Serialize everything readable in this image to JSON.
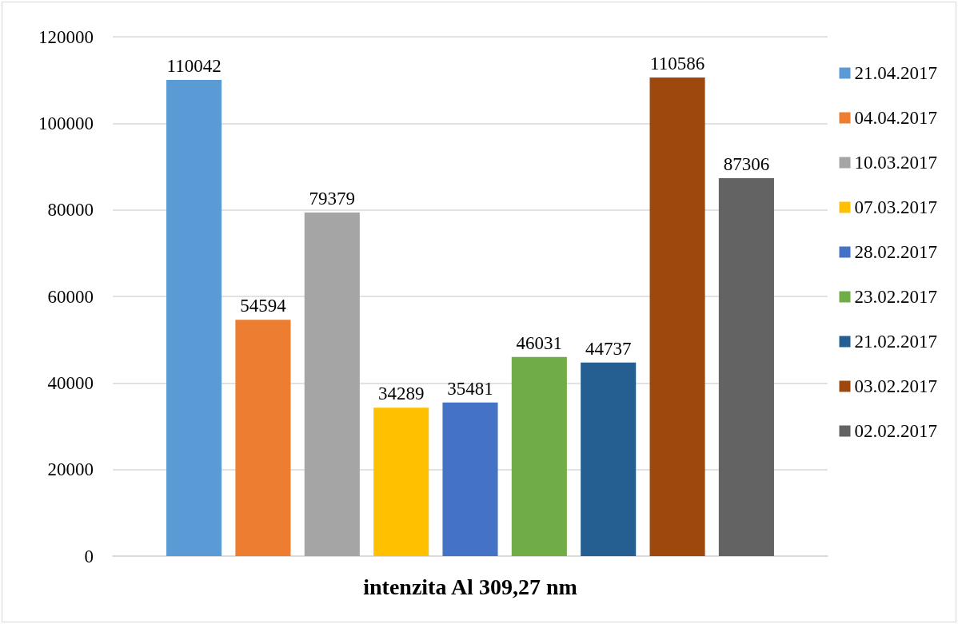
{
  "chart_data": {
    "type": "bar",
    "categories": [
      "intenzita Al 309,27 nm"
    ],
    "series": [
      {
        "name": "21.04.2017",
        "color": "#5b9bd5",
        "values": [
          110042
        ]
      },
      {
        "name": "04.04.2017",
        "color": "#ed7d31",
        "values": [
          54594
        ]
      },
      {
        "name": "10.03.2017",
        "color": "#a5a5a5",
        "values": [
          79379
        ]
      },
      {
        "name": "07.03.2017",
        "color": "#ffc000",
        "values": [
          34289
        ]
      },
      {
        "name": "28.02.2017",
        "color": "#4472c4",
        "values": [
          35481
        ]
      },
      {
        "name": "23.02.2017",
        "color": "#70ad47",
        "values": [
          46031
        ]
      },
      {
        "name": "21.02.2017",
        "color": "#255e91",
        "values": [
          44737
        ]
      },
      {
        "name": "03.02.2017",
        "color": "#9e480e",
        "values": [
          110586
        ]
      },
      {
        "name": "02.02.2017",
        "color": "#636363",
        "values": [
          87306
        ]
      }
    ],
    "ylim": [
      0,
      120000
    ],
    "yticks": [
      0,
      20000,
      40000,
      60000,
      80000,
      100000,
      120000
    ],
    "grid": "y",
    "legend": "right",
    "data_labels": true
  }
}
